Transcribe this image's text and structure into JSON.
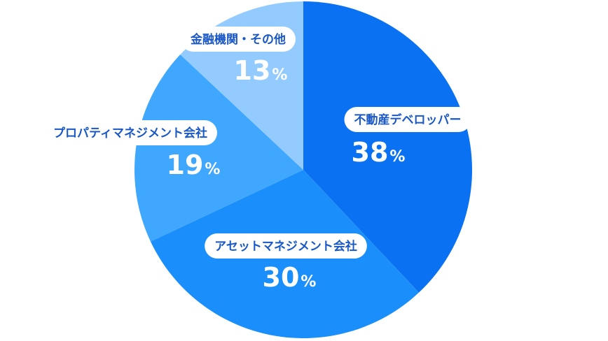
{
  "chart_data": {
    "type": "pie",
    "categories": [
      "不動産デベロッパー",
      "アセットマネジメント会社",
      "プロパティマネジメント会社",
      "金融機関・その他"
    ],
    "values": [
      38,
      30,
      19,
      13
    ],
    "unit": "%",
    "colors": [
      "#0a72f2",
      "#1a8ffb",
      "#40a7ff",
      "#94cbff"
    ],
    "label_color": "#1a58c6",
    "start_angle_deg": 0,
    "direction": "clockwise"
  }
}
